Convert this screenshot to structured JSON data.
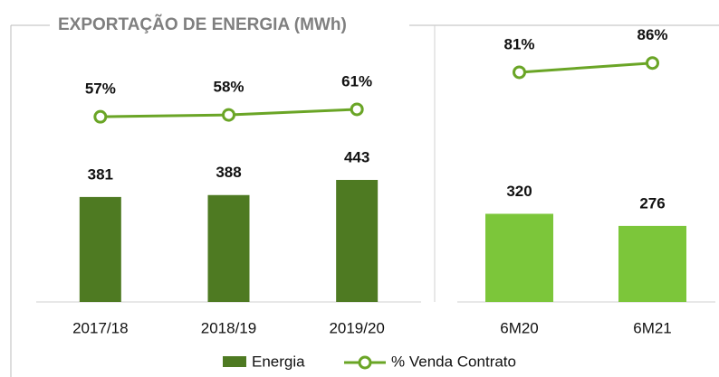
{
  "chart_data": {
    "type": "bar_line",
    "title": "EXPORTAÇÃO DE ENERGIA (MWh)",
    "categories": [
      "2017/18",
      "2018/19",
      "2019/20",
      "6M20",
      "6M21"
    ],
    "groups": [
      3,
      2
    ],
    "series": [
      {
        "name": "Energia",
        "type": "bar",
        "color": "#4e7a22",
        "colors": [
          "#4e7a22",
          "#4e7a22",
          "#4e7a22",
          "#7cc63a",
          "#7cc63a"
        ],
        "values": [
          381,
          388,
          443,
          320,
          276
        ]
      },
      {
        "name": "% Venda Contrato",
        "type": "line",
        "color": "#6aa526",
        "values": [
          57,
          58,
          61,
          81,
          86
        ],
        "value_labels": [
          "57%",
          "58%",
          "61%",
          "81%",
          "86%"
        ]
      }
    ]
  }
}
